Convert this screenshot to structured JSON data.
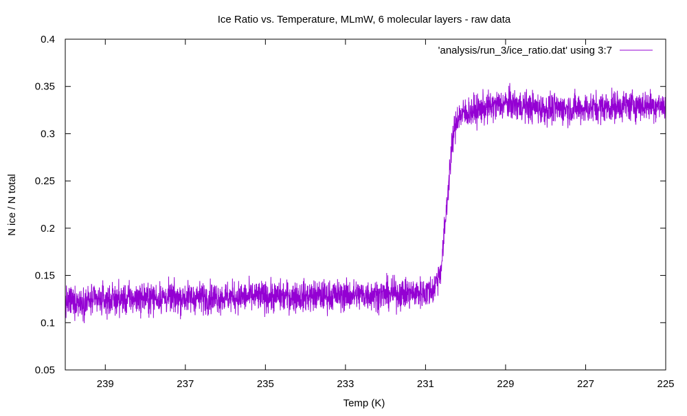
{
  "chart_data": {
    "type": "line",
    "title": "Ice Ratio vs. Temperature, MLmW, 6 molecular layers - raw data",
    "xlabel": "Temp (K)",
    "ylabel": "N ice / N total",
    "xlim": [
      240,
      225
    ],
    "ylim": [
      0.05,
      0.4
    ],
    "x_reversed": true,
    "x_ticks": [
      239,
      237,
      235,
      233,
      231,
      229,
      227,
      225
    ],
    "y_ticks": [
      0.05,
      0.1,
      0.15,
      0.2,
      0.25,
      0.3,
      0.35,
      0.4
    ],
    "y_tick_labels": [
      "0.05",
      "0.1",
      "0.15",
      "0.2",
      "0.25",
      "0.3",
      "0.35",
      "0.4"
    ],
    "legend_position": "top-right",
    "grid": false,
    "series": [
      {
        "name": "'analysis/run_3/ice_ratio.dat' using 3:7",
        "color": "#9400d3",
        "noise_amplitude": 0.015,
        "x": [
          240,
          238,
          236,
          234,
          232,
          231,
          230.8,
          230.6,
          230.5,
          230.4,
          230.3,
          230.2,
          230,
          229,
          228,
          227,
          226,
          225
        ],
        "y": [
          0.122,
          0.126,
          0.127,
          0.128,
          0.13,
          0.132,
          0.135,
          0.16,
          0.21,
          0.26,
          0.3,
          0.318,
          0.322,
          0.332,
          0.326,
          0.327,
          0.33,
          0.33
        ]
      }
    ]
  }
}
